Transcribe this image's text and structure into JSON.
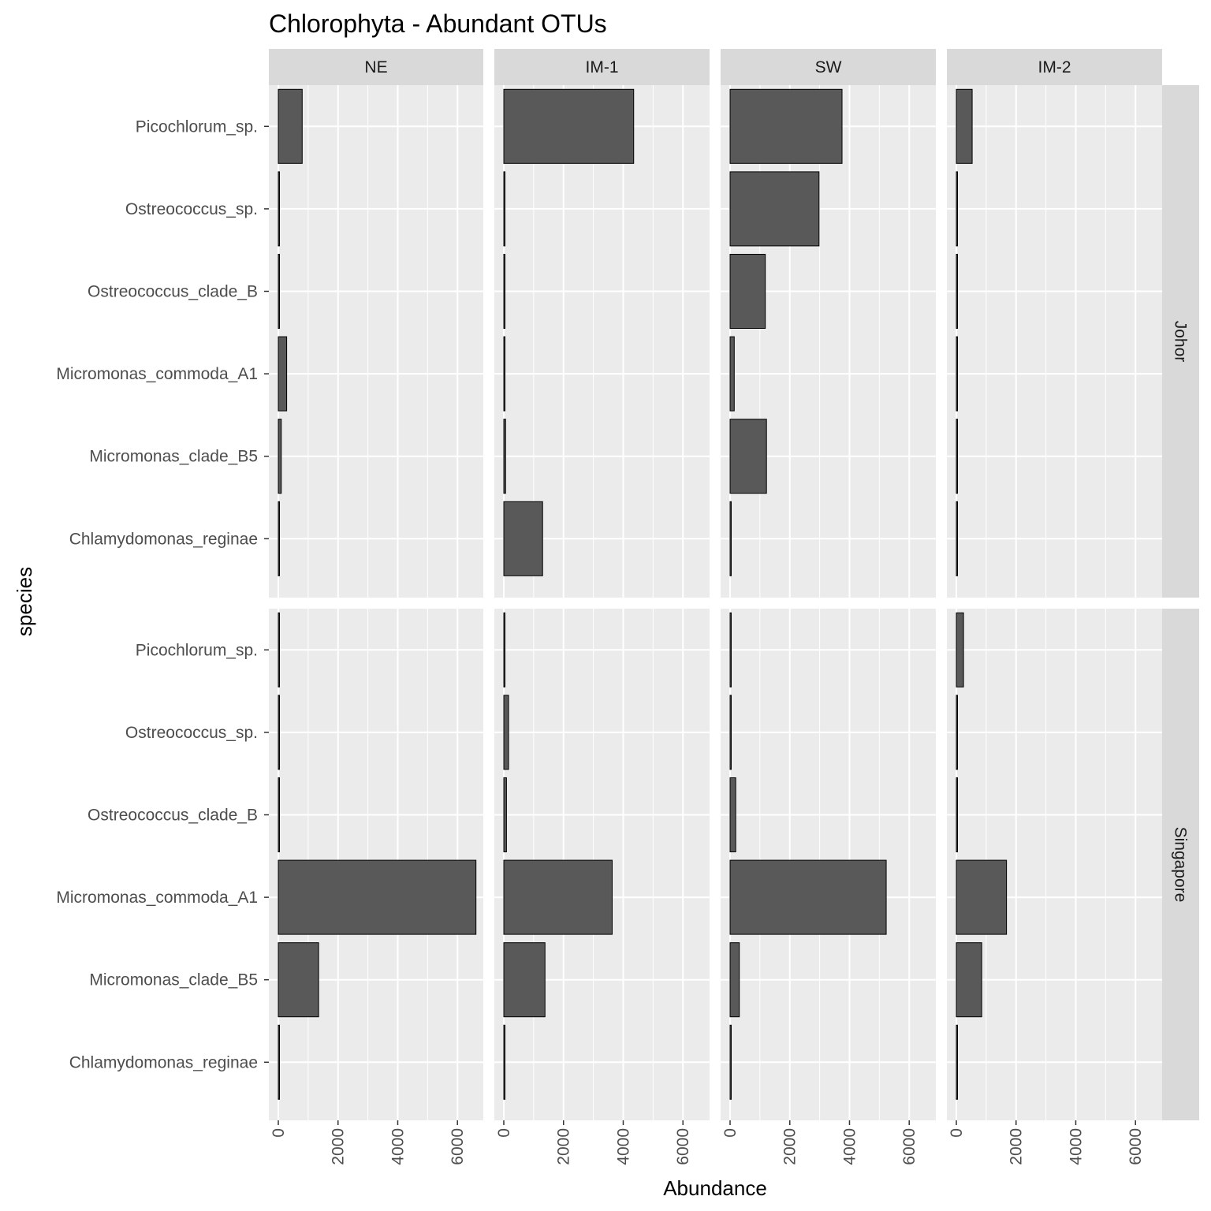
{
  "chart_data": {
    "type": "bar",
    "orientation": "horizontal",
    "title": "Chlorophyta - Abundant OTUs",
    "xlabel": "Abundance",
    "ylabel": "species",
    "xlim": [
      0,
      6900
    ],
    "x_ticks": [
      0,
      2000,
      4000,
      6000
    ],
    "grid": true,
    "columns": [
      "NE",
      "IM-1",
      "SW",
      "IM-2"
    ],
    "rows": [
      "Johor",
      "Singapore"
    ],
    "categories": [
      "Picochlorum_sp.",
      "Ostreococcus_sp.",
      "Ostreococcus_clade_B",
      "Micromonas_commoda_A1",
      "Micromonas_clade_B5",
      "Chlamydomonas_reginae"
    ],
    "panels": [
      {
        "row": "Johor",
        "column": "NE",
        "values": [
          800,
          20,
          20,
          280,
          100,
          20
        ]
      },
      {
        "row": "Johor",
        "column": "IM-1",
        "values": [
          4350,
          20,
          20,
          20,
          60,
          1300
        ]
      },
      {
        "row": "Johor",
        "column": "SW",
        "values": [
          3750,
          2980,
          1180,
          140,
          1220,
          20
        ]
      },
      {
        "row": "Johor",
        "column": "IM-2",
        "values": [
          530,
          20,
          20,
          20,
          20,
          20
        ]
      },
      {
        "row": "Singapore",
        "column": "NE",
        "values": [
          20,
          20,
          20,
          6620,
          1350,
          20
        ]
      },
      {
        "row": "Singapore",
        "column": "IM-1",
        "values": [
          20,
          160,
          90,
          3630,
          1380,
          20
        ]
      },
      {
        "row": "Singapore",
        "column": "SW",
        "values": [
          20,
          20,
          190,
          5230,
          310,
          20
        ]
      },
      {
        "row": "Singapore",
        "column": "IM-2",
        "values": [
          240,
          20,
          20,
          1680,
          850,
          20
        ]
      }
    ],
    "colors": {
      "bar_fill": "#595959",
      "bar_stroke": "#000000",
      "panel_bg": "#ebebeb",
      "strip_bg": "#d9d9d9",
      "grid": "#ffffff"
    }
  }
}
